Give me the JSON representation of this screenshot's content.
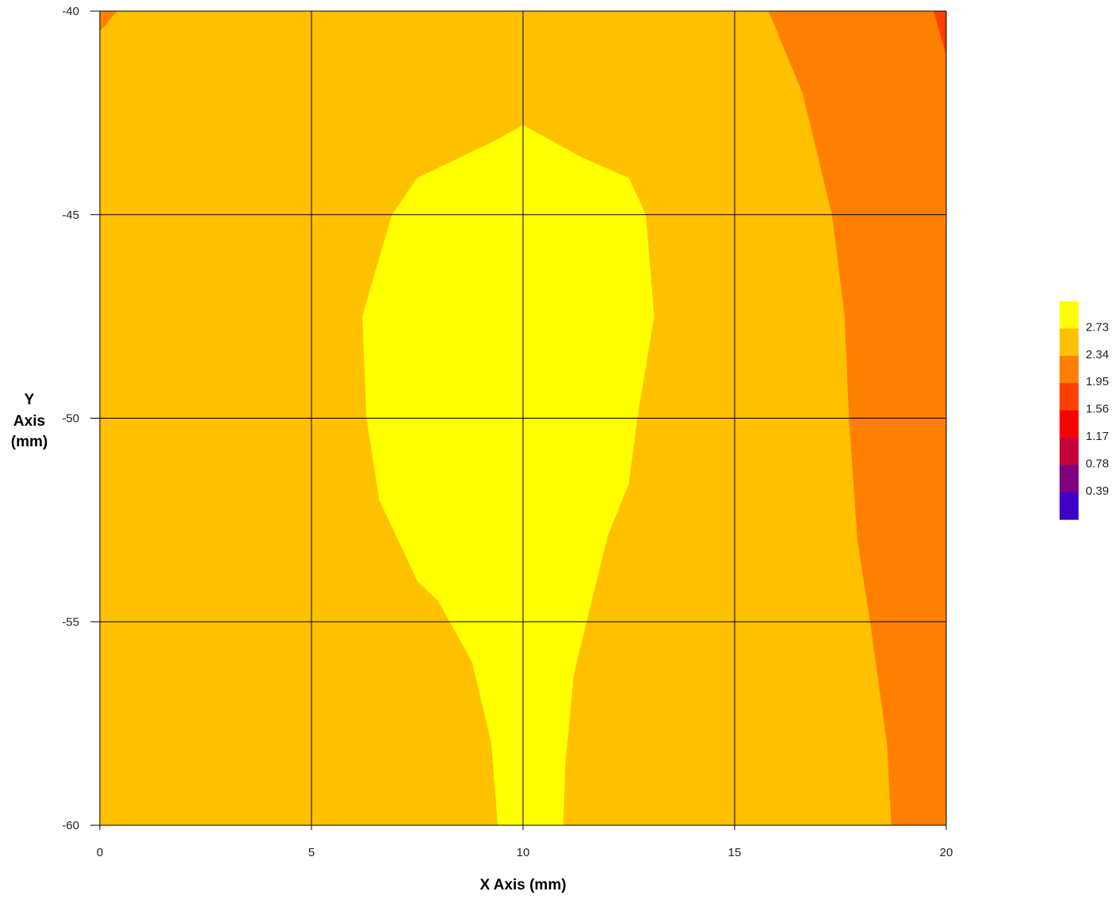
{
  "chart_data": {
    "type": "contour",
    "xlabel": "X Axis (mm)",
    "ylabel": [
      "Y",
      "Axis",
      "(mm)"
    ],
    "xlim": [
      0,
      20
    ],
    "ylim": [
      -60,
      -40
    ],
    "x_ticks": [
      "0",
      "5",
      "10",
      "15",
      "20"
    ],
    "y_ticks": [
      "-40",
      "-45",
      "-50",
      "-55",
      "-60"
    ],
    "grid": true,
    "legend": {
      "placement": "right",
      "levels": [
        {
          "label": "",
          "color": "#ffff00"
        },
        {
          "label": "2.73",
          "color": "#ffc000"
        },
        {
          "label": "2.34",
          "color": "#ff8000"
        },
        {
          "label": "1.95",
          "color": "#ff4000"
        },
        {
          "label": "1.56",
          "color": "#ff0000"
        },
        {
          "label": "1.17",
          "color": "#c8003c"
        },
        {
          "label": "0.78",
          "color": "#800080"
        },
        {
          "label": "0.39",
          "color": "#4000c8"
        }
      ]
    },
    "regions": [
      {
        "level": "2.34–2.73",
        "color": "#ffc000",
        "boundary": [
          [
            0,
            -60
          ],
          [
            0,
            -40.5
          ],
          [
            0.4,
            -40
          ],
          [
            15.8,
            -40
          ],
          [
            16.6,
            -42
          ],
          [
            17.3,
            -45
          ],
          [
            17.6,
            -47.5
          ],
          [
            17.7,
            -50
          ],
          [
            17.9,
            -53
          ],
          [
            18.2,
            -55
          ],
          [
            18.6,
            -58
          ],
          [
            18.7,
            -60
          ]
        ]
      },
      {
        "level": "> 2.73",
        "color": "#ffff00",
        "boundary": [
          [
            9.4,
            -60
          ],
          [
            9.25,
            -58
          ],
          [
            8.8,
            -56
          ],
          [
            8.0,
            -54.5
          ],
          [
            7.5,
            -54
          ],
          [
            6.6,
            -52
          ],
          [
            6.3,
            -50
          ],
          [
            6.2,
            -47.5
          ],
          [
            6.9,
            -45
          ],
          [
            7.5,
            -44.1
          ],
          [
            9.3,
            -43.2
          ],
          [
            10.0,
            -42.8
          ],
          [
            11.4,
            -43.6
          ],
          [
            12.5,
            -44.1
          ],
          [
            12.9,
            -45
          ],
          [
            13.1,
            -47.5
          ],
          [
            12.7,
            -50
          ],
          [
            12.5,
            -51.6
          ],
          [
            12.0,
            -52.9
          ],
          [
            11.5,
            -55
          ],
          [
            11.2,
            -56.3
          ],
          [
            11.0,
            -58.5
          ],
          [
            10.95,
            -60
          ]
        ]
      },
      {
        "level": "1.95–2.34",
        "color": "#ff8000",
        "boundary": [
          [
            0,
            -40.5
          ],
          [
            0,
            -40
          ],
          [
            0.4,
            -40
          ]
        ]
      },
      {
        "level": "1.56–1.95",
        "color": "#ff4000",
        "boundary": [
          [
            19.7,
            -40
          ],
          [
            20,
            -40
          ],
          [
            20,
            -41.1
          ]
        ]
      }
    ],
    "background_color": "#ff8000"
  }
}
